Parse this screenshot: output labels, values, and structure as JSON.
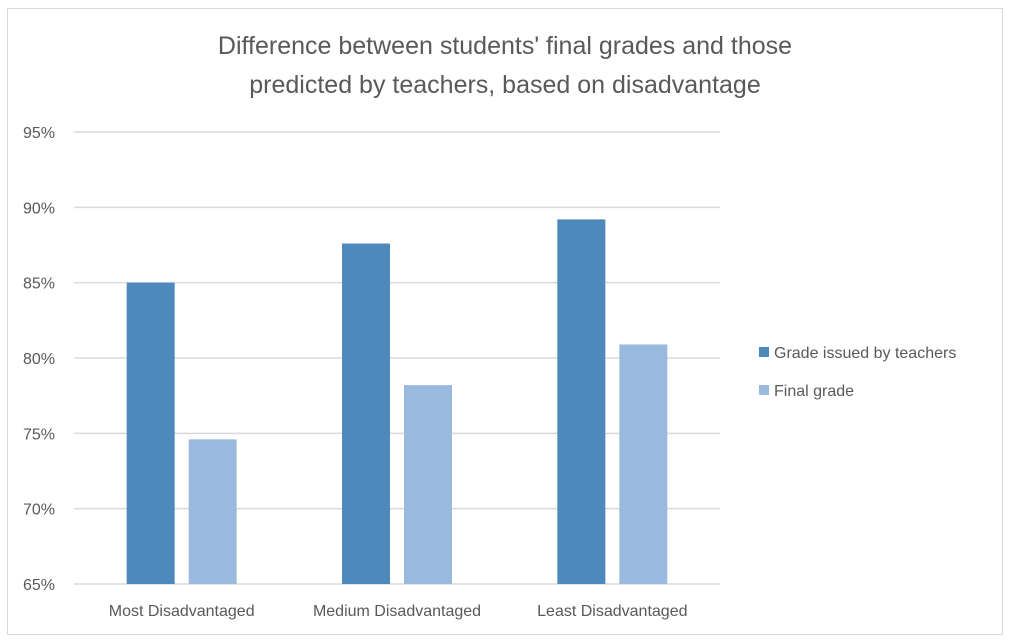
{
  "chart_data": {
    "type": "bar",
    "title_lines": [
      "Difference between students' final grades and those",
      "predicted by teachers, based on disadvantage"
    ],
    "categories": [
      "Most Disadvantaged",
      "Medium Disadvantaged",
      "Least Disadvantaged"
    ],
    "series": [
      {
        "name": "Grade issued by teachers",
        "color": "#4f88bd",
        "values": [
          0.85,
          0.876,
          0.892
        ]
      },
      {
        "name": "Final grade",
        "color": "#9ab9df",
        "values": [
          0.746,
          0.782,
          0.809
        ]
      }
    ],
    "ylim": [
      0.65,
      0.95
    ],
    "yticks": [
      0.65,
      0.7,
      0.75,
      0.8,
      0.85,
      0.9,
      0.95
    ],
    "ytick_labels": [
      "65%",
      "70%",
      "75%",
      "80%",
      "85%",
      "90%",
      "95%"
    ],
    "grid": true,
    "grid_color": "#d9d9d9",
    "legend_position": "right"
  }
}
